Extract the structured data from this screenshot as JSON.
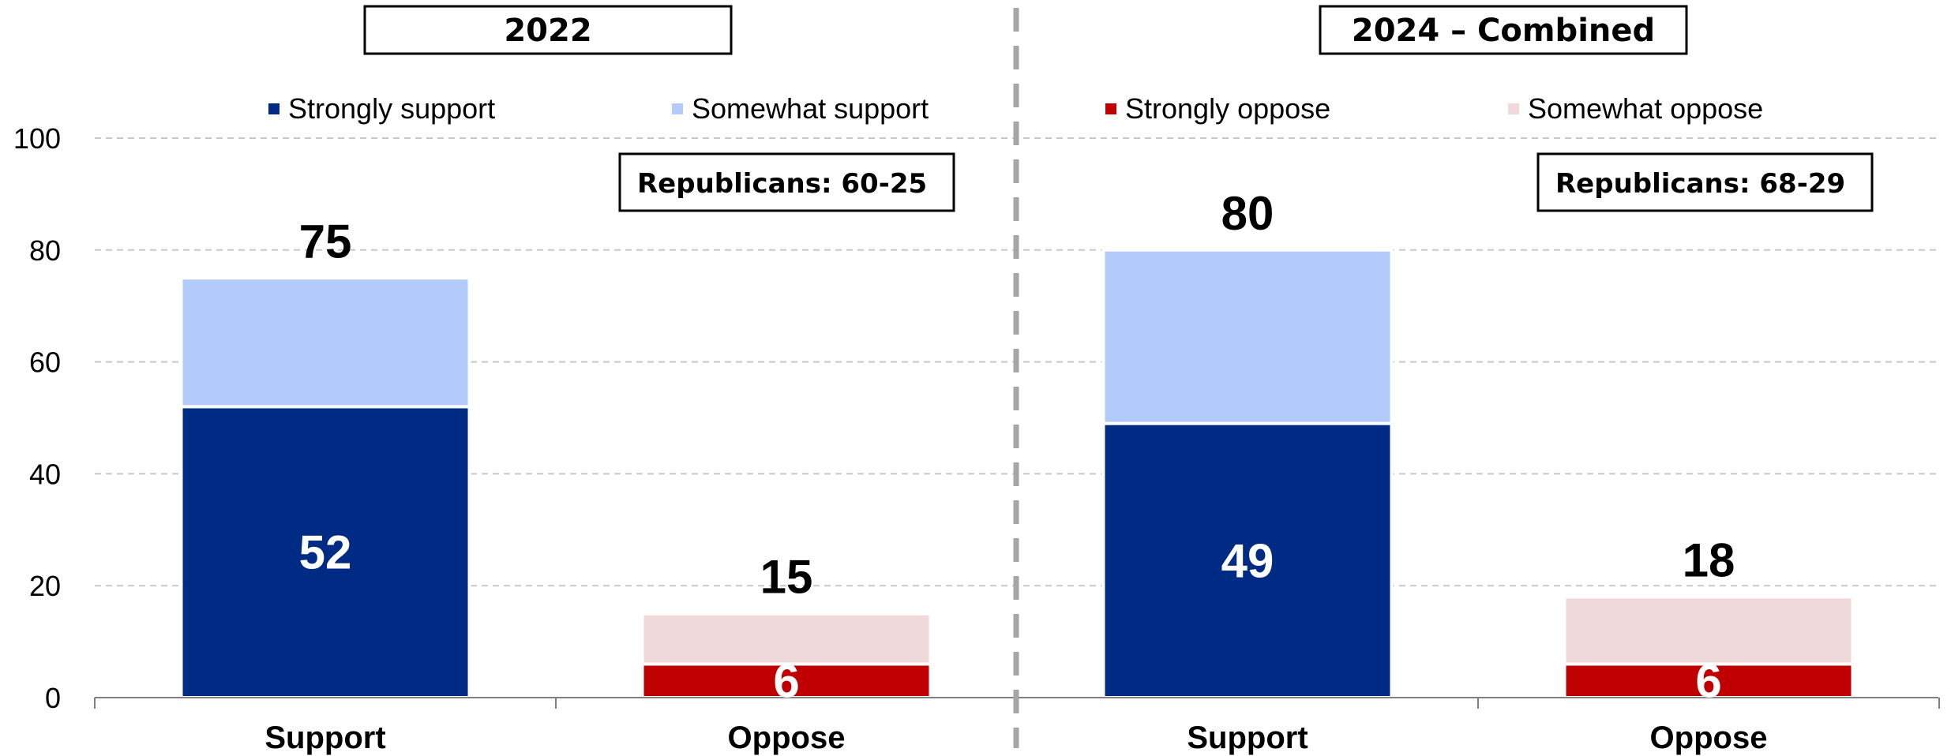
{
  "chart_data": {
    "type": "bar",
    "stacked": true,
    "ylim": [
      0,
      100
    ],
    "yticks": [
      0,
      20,
      40,
      60,
      80,
      100
    ],
    "grid": true,
    "legend": [
      "Strongly support",
      "Somewhat support",
      "Strongly oppose",
      "Somewhat oppose"
    ],
    "colors": {
      "Strongly support": "#002b84",
      "Somewhat support": "#b3cbfb",
      "Strongly oppose": "#c00000",
      "Somewhat oppose": "#f0d9da"
    },
    "panels": [
      {
        "title": "2022",
        "note": "Republicans: 60-25",
        "categories": [
          "Support",
          "Oppose"
        ],
        "bars": [
          {
            "category": "Support",
            "total": 75,
            "segments": [
              {
                "series": "Strongly support",
                "value": 52,
                "label": "52"
              },
              {
                "series": "Somewhat support",
                "value": 23
              }
            ]
          },
          {
            "category": "Oppose",
            "total": 15,
            "segments": [
              {
                "series": "Strongly oppose",
                "value": 6,
                "label": "6"
              },
              {
                "series": "Somewhat oppose",
                "value": 9
              }
            ]
          }
        ]
      },
      {
        "title": "2024 – Combined",
        "note": "Republicans: 68-29",
        "categories": [
          "Support",
          "Oppose"
        ],
        "bars": [
          {
            "category": "Support",
            "total": 80,
            "segments": [
              {
                "series": "Strongly support",
                "value": 49,
                "label": "49"
              },
              {
                "series": "Somewhat support",
                "value": 31
              }
            ]
          },
          {
            "category": "Oppose",
            "total": 18,
            "segments": [
              {
                "series": "Strongly oppose",
                "value": 6,
                "label": "6"
              },
              {
                "series": "Somewhat oppose",
                "value": 12
              }
            ]
          }
        ]
      }
    ]
  }
}
